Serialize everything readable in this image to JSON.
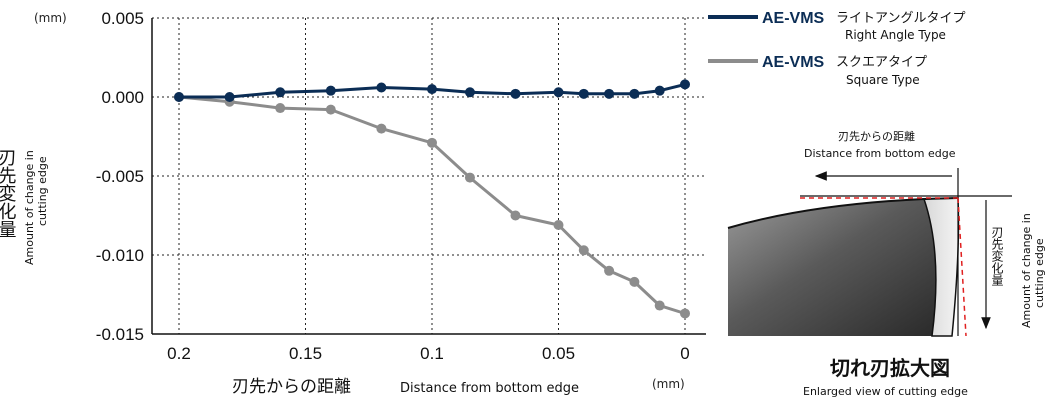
{
  "chart_data": {
    "type": "line",
    "x": [
      0.2,
      0.18,
      0.16,
      0.14,
      0.12,
      0.1,
      0.085,
      0.067,
      0.05,
      0.04,
      0.03,
      0.02,
      0.01,
      0
    ],
    "series": [
      {
        "name": "AE-VMS ライトアングルタイプ",
        "name_en": "Right Angle Type",
        "name_prefix": "AE-VMS",
        "name_jp": "ライトアングルタイプ",
        "color": "#0b2d55",
        "values": [
          0.0,
          0.0,
          0.0003,
          0.0004,
          0.0006,
          0.0005,
          0.0003,
          0.0002,
          0.0003,
          0.0002,
          0.0002,
          0.0002,
          0.0004,
          0.0008
        ]
      },
      {
        "name": "AE-VMS スクエアタイプ",
        "name_en": "Square Type",
        "name_prefix": "AE-VMS",
        "name_jp": "スクエアタイプ",
        "color": "#8c8c8c",
        "values": [
          0.0,
          -0.0003,
          -0.0007,
          -0.0008,
          -0.002,
          -0.0029,
          -0.0051,
          -0.0075,
          -0.0081,
          -0.0097,
          -0.011,
          -0.0117,
          -0.0132,
          -0.0137
        ]
      }
    ],
    "x_ticks": [
      "0.2",
      "0.15",
      "0.1",
      "0.05",
      "0"
    ],
    "x_tick_values": [
      0.2,
      0.15,
      0.1,
      0.05,
      0
    ],
    "y_ticks": [
      "0.005",
      "0.000",
      "-0.005",
      "-0.010",
      "-0.015"
    ],
    "y_tick_values": [
      0.005,
      0,
      -0.005,
      -0.01,
      -0.015
    ],
    "xlim": [
      0.2,
      0
    ],
    "ylim": [
      -0.015,
      0.005
    ],
    "x_reversed": true,
    "grid": true,
    "legend": "top-right",
    "xlabel_jp": "刃先からの距離",
    "xlabel_en": "Distance from bottom edge",
    "ylabel_jp": "刃先変化量",
    "ylabel_en_1": "Amount of change in",
    "ylabel_en_2": "cutting edge",
    "x_unit": "(mm)",
    "y_unit": "(mm)"
  },
  "diagram": {
    "distance_jp": "刃先からの距離",
    "distance_en": "Distance from bottom edge",
    "change_jp": "刃先変化量",
    "change_en_1": "Amount of change in",
    "change_en_2": "cutting edge",
    "title_jp": "切れ刃拡大図",
    "title_en": "Enlarged view of cutting edge"
  }
}
